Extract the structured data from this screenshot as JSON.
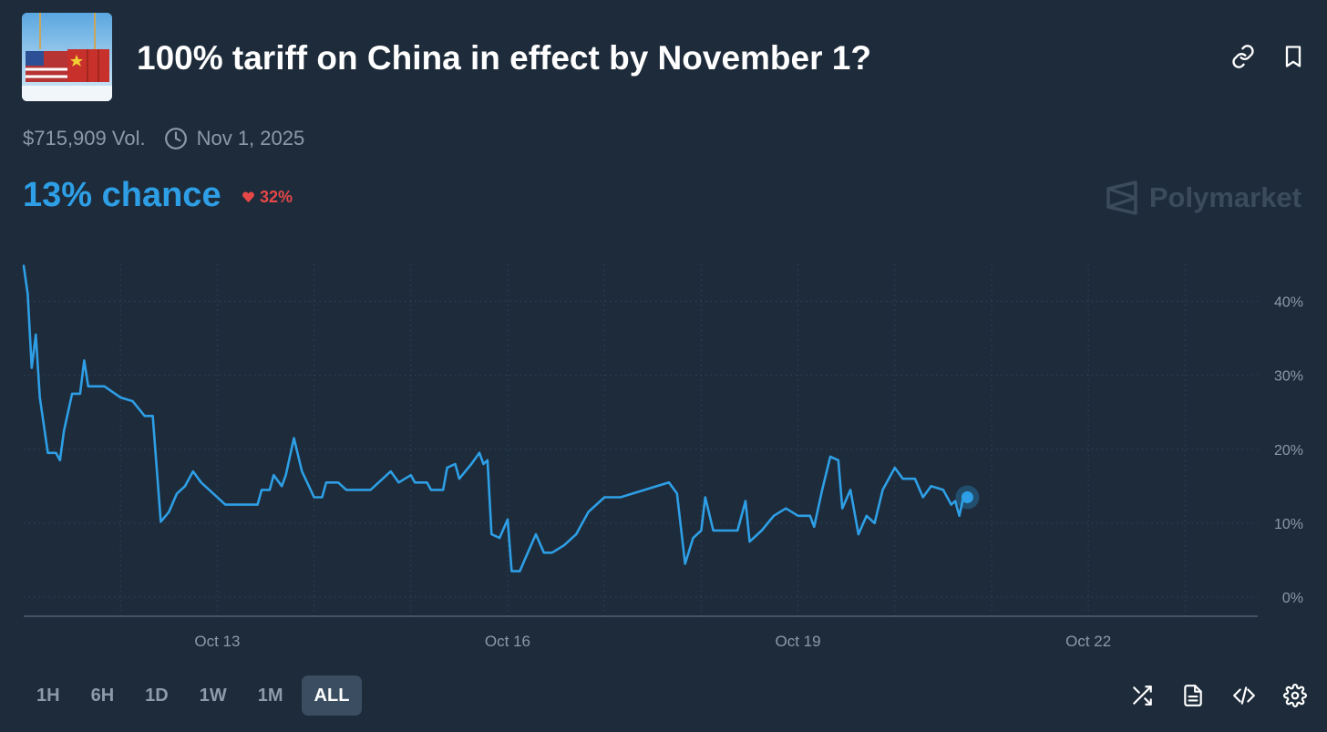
{
  "market": {
    "title": "100% tariff on China in effect by November 1?",
    "volume": "$715,909 Vol.",
    "end_date": "Nov 1, 2025",
    "chance_label": "13% chance",
    "change": "32%",
    "change_direction": "down",
    "brand": "Polymarket",
    "thumbnail_icon": "shipping-containers-us-china-flags"
  },
  "header_icons": [
    "link-icon",
    "bookmark-icon"
  ],
  "timeframes": [
    {
      "label": "1H",
      "active": false
    },
    {
      "label": "6H",
      "active": false
    },
    {
      "label": "1D",
      "active": false
    },
    {
      "label": "1W",
      "active": false
    },
    {
      "label": "1M",
      "active": false
    },
    {
      "label": "ALL",
      "active": true
    }
  ],
  "tool_icons": [
    "shuffle-icon",
    "document-icon",
    "embed-code-icon",
    "settings-gear-icon"
  ],
  "colors": {
    "background": "#1d2b3a",
    "line": "#2e9fe6",
    "negative": "#e64848",
    "muted": "#8d9aa8",
    "grid": "#33465a"
  },
  "chart_data": {
    "type": "line",
    "title": "",
    "xlabel": "",
    "ylabel": "",
    "x_range": [
      "2025-10-11",
      "2025-10-23T18:00"
    ],
    "ylim": [
      0,
      45
    ],
    "y_axis_side": "right",
    "y_ticks": [
      0,
      10,
      20,
      30,
      40
    ],
    "y_tick_labels": [
      "0%",
      "10%",
      "20%",
      "30%",
      "40%"
    ],
    "x_ticks": [
      "2025-10-13",
      "2025-10-16",
      "2025-10-19",
      "2025-10-22"
    ],
    "x_tick_labels": [
      "Oct 13",
      "Oct 16",
      "Oct 19",
      "Oct 22"
    ],
    "x_gridlines": [
      "2025-10-12",
      "2025-10-13",
      "2025-10-14",
      "2025-10-15",
      "2025-10-16",
      "2025-10-17",
      "2025-10-18",
      "2025-10-19",
      "2025-10-20",
      "2025-10-21",
      "2025-10-22",
      "2025-10-23"
    ],
    "grid": true,
    "series": [
      {
        "points": [
          [
            "2025-10-11T00:00",
            44.8
          ],
          [
            "2025-10-11T01:00",
            41
          ],
          [
            "2025-10-11T02:00",
            31
          ],
          [
            "2025-10-11T03:00",
            35.5
          ],
          [
            "2025-10-11T04:00",
            27
          ],
          [
            "2025-10-11T06:00",
            19.5
          ],
          [
            "2025-10-11T08:00",
            19.5
          ],
          [
            "2025-10-11T09:00",
            18.5
          ],
          [
            "2025-10-11T10:00",
            22.5
          ],
          [
            "2025-10-11T12:00",
            27.5
          ],
          [
            "2025-10-11T14:00",
            27.5
          ],
          [
            "2025-10-11T15:00",
            32
          ],
          [
            "2025-10-11T16:00",
            28.5
          ],
          [
            "2025-10-11T20:00",
            28.5
          ],
          [
            "2025-10-12T00:00",
            27
          ],
          [
            "2025-10-12T03:00",
            26.5
          ],
          [
            "2025-10-12T06:00",
            24.5
          ],
          [
            "2025-10-12T08:00",
            24.5
          ],
          [
            "2025-10-12T10:00",
            10.2
          ],
          [
            "2025-10-12T12:00",
            11.5
          ],
          [
            "2025-10-12T14:00",
            14
          ],
          [
            "2025-10-12T16:00",
            15
          ],
          [
            "2025-10-12T18:00",
            17
          ],
          [
            "2025-10-12T20:00",
            15.5
          ],
          [
            "2025-10-12T23:00",
            14
          ],
          [
            "2025-10-13T02:00",
            12.5
          ],
          [
            "2025-10-13T10:00",
            12.5
          ],
          [
            "2025-10-13T11:00",
            14.5
          ],
          [
            "2025-10-13T13:00",
            14.5
          ],
          [
            "2025-10-13T14:00",
            16.5
          ],
          [
            "2025-10-13T16:00",
            15
          ],
          [
            "2025-10-13T17:00",
            16.5
          ],
          [
            "2025-10-13T19:00",
            21.5
          ],
          [
            "2025-10-13T21:00",
            17
          ],
          [
            "2025-10-14T00:00",
            13.5
          ],
          [
            "2025-10-14T02:00",
            13.5
          ],
          [
            "2025-10-14T03:00",
            15.5
          ],
          [
            "2025-10-14T06:00",
            15.5
          ],
          [
            "2025-10-14T08:00",
            14.5
          ],
          [
            "2025-10-14T14:00",
            14.5
          ],
          [
            "2025-10-14T16:00",
            15.5
          ],
          [
            "2025-10-14T19:00",
            17
          ],
          [
            "2025-10-14T21:00",
            15.5
          ],
          [
            "2025-10-15T00:00",
            16.5
          ],
          [
            "2025-10-15T01:00",
            15.5
          ],
          [
            "2025-10-15T04:00",
            15.5
          ],
          [
            "2025-10-15T05:00",
            14.5
          ],
          [
            "2025-10-15T08:00",
            14.5
          ],
          [
            "2025-10-15T09:00",
            17.5
          ],
          [
            "2025-10-15T11:00",
            18
          ],
          [
            "2025-10-15T12:00",
            16
          ],
          [
            "2025-10-15T15:00",
            18
          ],
          [
            "2025-10-15T17:00",
            19.5
          ],
          [
            "2025-10-15T18:00",
            18
          ],
          [
            "2025-10-15T19:00",
            18.5
          ],
          [
            "2025-10-15T20:00",
            8.5
          ],
          [
            "2025-10-15T22:00",
            8
          ],
          [
            "2025-10-16T00:00",
            10.5
          ],
          [
            "2025-10-16T01:00",
            3.5
          ],
          [
            "2025-10-16T03:00",
            3.5
          ],
          [
            "2025-10-16T05:00",
            6
          ],
          [
            "2025-10-16T07:00",
            8.5
          ],
          [
            "2025-10-16T09:00",
            6
          ],
          [
            "2025-10-16T11:00",
            6
          ],
          [
            "2025-10-16T14:00",
            7
          ],
          [
            "2025-10-16T17:00",
            8.5
          ],
          [
            "2025-10-16T20:00",
            11.5
          ],
          [
            "2025-10-17T00:00",
            13.5
          ],
          [
            "2025-10-17T04:00",
            13.5
          ],
          [
            "2025-10-17T07:00",
            14
          ],
          [
            "2025-10-17T10:00",
            14.5
          ],
          [
            "2025-10-17T13:00",
            15
          ],
          [
            "2025-10-17T16:00",
            15.5
          ],
          [
            "2025-10-17T18:00",
            14
          ],
          [
            "2025-10-17T20:00",
            4.5
          ],
          [
            "2025-10-17T22:00",
            8
          ],
          [
            "2025-10-18T00:00",
            9
          ],
          [
            "2025-10-18T01:00",
            13.5
          ],
          [
            "2025-10-18T03:00",
            9
          ],
          [
            "2025-10-18T06:00",
            9
          ],
          [
            "2025-10-18T09:00",
            9
          ],
          [
            "2025-10-18T11:00",
            13
          ],
          [
            "2025-10-18T12:00",
            7.5
          ],
          [
            "2025-10-18T15:00",
            9
          ],
          [
            "2025-10-18T18:00",
            11
          ],
          [
            "2025-10-18T21:00",
            12
          ],
          [
            "2025-10-19T00:00",
            11
          ],
          [
            "2025-10-19T03:00",
            11
          ],
          [
            "2025-10-19T04:00",
            9.5
          ],
          [
            "2025-10-19T06:00",
            14.5
          ],
          [
            "2025-10-19T08:00",
            19
          ],
          [
            "2025-10-19T10:00",
            18.5
          ],
          [
            "2025-10-19T11:00",
            12
          ],
          [
            "2025-10-19T13:00",
            14.5
          ],
          [
            "2025-10-19T15:00",
            8.5
          ],
          [
            "2025-10-19T17:00",
            11
          ],
          [
            "2025-10-19T19:00",
            10
          ],
          [
            "2025-10-19T21:00",
            14.5
          ],
          [
            "2025-10-20T00:00",
            17.5
          ],
          [
            "2025-10-20T02:00",
            16
          ],
          [
            "2025-10-20T05:00",
            16
          ],
          [
            "2025-10-20T07:00",
            13.5
          ],
          [
            "2025-10-20T09:00",
            15
          ],
          [
            "2025-10-20T12:00",
            14.5
          ],
          [
            "2025-10-20T14:00",
            12.5
          ],
          [
            "2025-10-20T15:00",
            13
          ],
          [
            "2025-10-20T16:00",
            11
          ],
          [
            "2025-10-20T17:00",
            13.5
          ],
          [
            "2025-10-20T18:00",
            13.5
          ]
        ]
      }
    ],
    "current_value": 13.5
  }
}
